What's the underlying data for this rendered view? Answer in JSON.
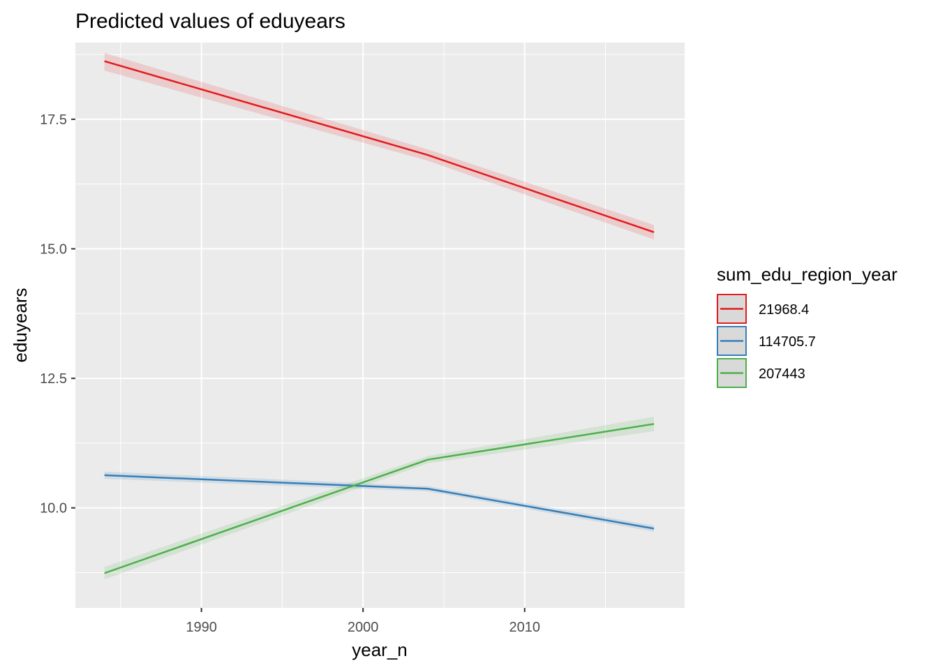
{
  "chart_data": {
    "type": "line",
    "title": "Predicted values of eduyears",
    "xlabel": "year_n",
    "ylabel": "eduyears",
    "xlim": [
      1982.2,
      2019.9
    ],
    "ylim": [
      8.07,
      18.98
    ],
    "x_ticks": [
      1990,
      2000,
      2010
    ],
    "x_tick_labels": [
      "1990",
      "2000",
      "2010"
    ],
    "y_ticks": [
      10.0,
      12.5,
      15.0,
      17.5
    ],
    "y_tick_labels": [
      "10.0",
      "12.5",
      "15.0",
      "17.5"
    ],
    "grid": true,
    "legend": {
      "title": "sum_edu_region_year",
      "position": "right"
    },
    "series": [
      {
        "name": "21968.4",
        "color": "#E41A1C",
        "x": [
          1984,
          2004,
          2018
        ],
        "y": [
          18.62,
          16.81,
          15.32
        ],
        "ci_upper": [
          18.78,
          16.92,
          15.46
        ],
        "ci_lower": [
          18.44,
          16.7,
          15.18
        ]
      },
      {
        "name": "114705.7",
        "color": "#377EB8",
        "x": [
          1984,
          2004,
          2018
        ],
        "y": [
          10.63,
          10.37,
          9.6
        ],
        "ci_upper": [
          10.7,
          10.42,
          9.66
        ],
        "ci_lower": [
          10.56,
          10.32,
          9.54
        ]
      },
      {
        "name": "207443",
        "color": "#4DAF4A",
        "x": [
          1984,
          2004,
          2018
        ],
        "y": [
          8.74,
          10.93,
          11.62
        ],
        "ci_upper": [
          8.86,
          11.0,
          11.76
        ],
        "ci_lower": [
          8.62,
          10.86,
          11.48
        ]
      }
    ]
  }
}
